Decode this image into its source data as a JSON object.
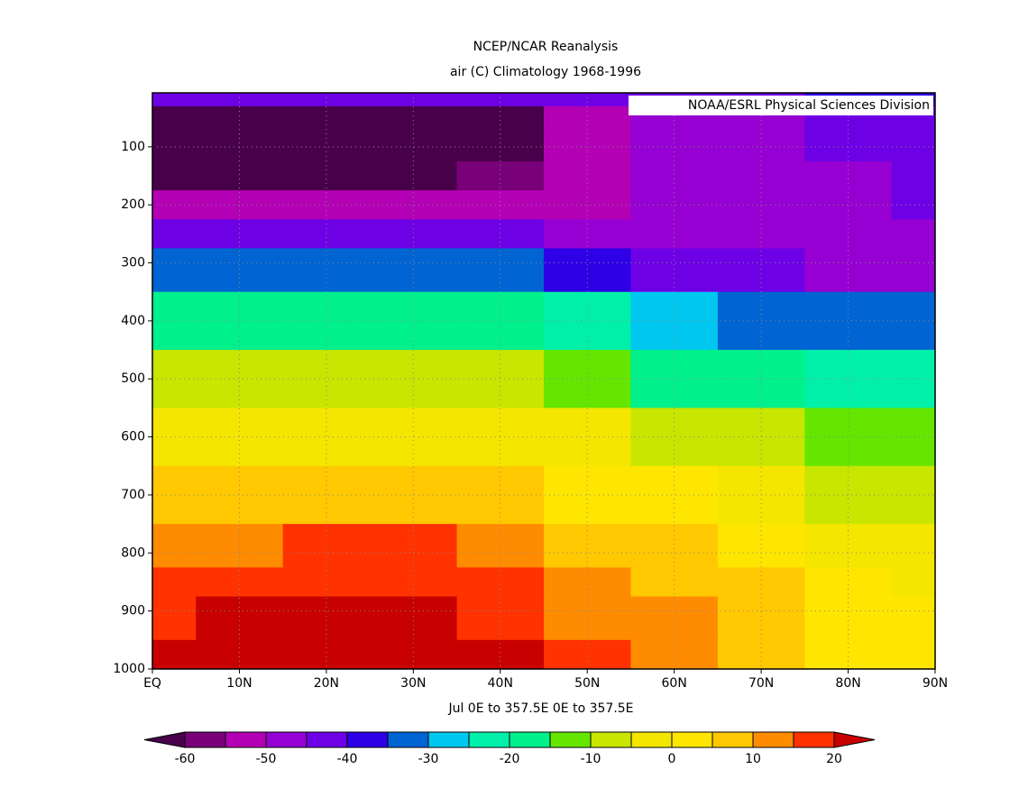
{
  "chart_data": {
    "type": "contour",
    "title": "NCEP/NCAR Reanalysis",
    "subtitle": "air (C) Climatology 1968-1996",
    "annotation": "NOAA/ESRL Physical Sciences Division",
    "xlabel": "Jul  0E to 357.5E  0E to 357.5E",
    "x": [
      0,
      10,
      20,
      30,
      40,
      50,
      60,
      70,
      80,
      90
    ],
    "xlim": [
      0,
      90
    ],
    "xticks": [
      {
        "value": 0,
        "label": "EQ"
      },
      {
        "value": 10,
        "label": "10N"
      },
      {
        "value": 20,
        "label": "20N"
      },
      {
        "value": 30,
        "label": "30N"
      },
      {
        "value": 40,
        "label": "40N"
      },
      {
        "value": 50,
        "label": "50N"
      },
      {
        "value": 60,
        "label": "60N"
      },
      {
        "value": 70,
        "label": "70N"
      },
      {
        "value": 80,
        "label": "80N"
      },
      {
        "value": 90,
        "label": "90N"
      }
    ],
    "y": [
      10,
      50,
      100,
      150,
      200,
      250,
      300,
      400,
      500,
      600,
      700,
      800,
      850,
      900,
      1000
    ],
    "ylim": [
      1000,
      7
    ],
    "yticks": [
      100,
      200,
      300,
      400,
      500,
      600,
      700,
      800,
      900,
      1000
    ],
    "grid": true,
    "z": [
      [
        -43,
        -43,
        -43,
        -43,
        -43,
        -42,
        -42,
        -41,
        -40,
        -40
      ],
      [
        -66,
        -66,
        -66,
        -65,
        -62,
        -53,
        -49,
        -47,
        -44,
        -43
      ],
      [
        -75,
        -75,
        -74,
        -72,
        -65,
        -55,
        -50,
        -46,
        -43,
        -42
      ],
      [
        -66,
        -66,
        -66,
        -66,
        -58,
        -53,
        -50,
        -48,
        -46,
        -43
      ],
      [
        -53,
        -53,
        -53,
        -53,
        -53,
        -52,
        -50,
        -49,
        -48,
        -45
      ],
      [
        -44,
        -44,
        -44,
        -44,
        -45,
        -47,
        -48,
        -49,
        -50,
        -48
      ],
      [
        -33,
        -33,
        -33,
        -33,
        -33,
        -38,
        -42,
        -44,
        -46,
        -47
      ],
      [
        -17,
        -17,
        -17,
        -17,
        -19,
        -24,
        -28,
        -31,
        -34,
        -35
      ],
      [
        -6,
        -6,
        -6,
        -6,
        -8,
        -12,
        -16,
        -20,
        -23,
        -24
      ],
      [
        -1,
        -1,
        -1,
        -1,
        -1,
        -4,
        -7,
        -10,
        -13,
        -15
      ],
      [
        7,
        8,
        9,
        9,
        6,
        3,
        1,
        -3,
        -7,
        -9
      ],
      [
        13,
        14,
        16,
        16,
        12,
        8,
        5,
        2,
        -3,
        -5
      ],
      [
        17,
        18,
        19,
        19,
        16,
        11,
        8,
        5,
        1,
        -1
      ],
      [
        19,
        20,
        21,
        21,
        19,
        14,
        11,
        7,
        2,
        0
      ],
      [
        25,
        25,
        26,
        26,
        23,
        17,
        13,
        7,
        3,
        1
      ]
    ],
    "colorbar": {
      "levels": [
        -60,
        -55,
        -50,
        -45,
        -40,
        -35,
        -30,
        -25,
        -20,
        -15,
        -10,
        -5,
        0,
        5,
        10,
        15,
        20
      ],
      "ticks": [
        -60,
        -50,
        -40,
        -30,
        -20,
        -10,
        0,
        10,
        20
      ],
      "colors": [
        "#48004a",
        "#780078",
        "#b400b4",
        "#9600d2",
        "#6e00e6",
        "#2d00e6",
        "#0064d2",
        "#00c8f0",
        "#00f0aa",
        "#00f08c",
        "#64e600",
        "#c8e600",
        "#f5e600",
        "#ffe600",
        "#ffc800",
        "#ff8c00",
        "#ff3200",
        "#c80000"
      ]
    }
  }
}
